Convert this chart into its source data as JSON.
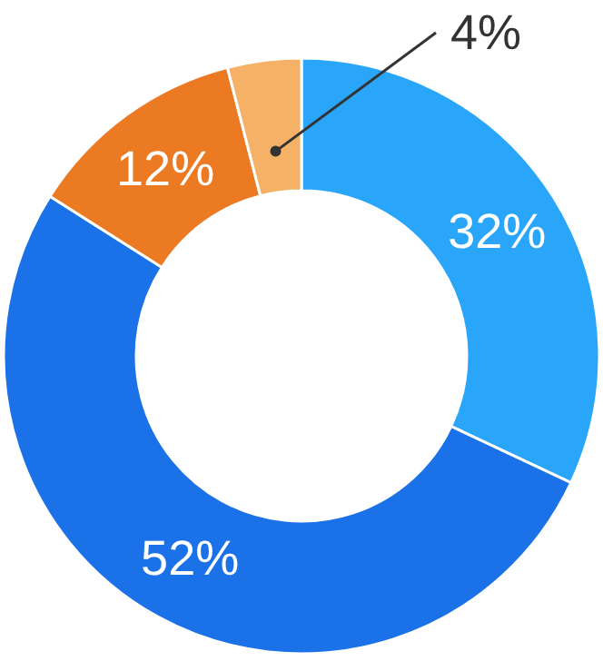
{
  "chart_data": {
    "type": "donut",
    "categories": [
      null,
      null,
      null,
      null
    ],
    "values": [
      32,
      52,
      12,
      4
    ],
    "colors": [
      "#29a6fa",
      "#1b72e8",
      "#ec7a22",
      "#f5b266"
    ],
    "value_labels": [
      "32%",
      "52%",
      "12%",
      "4%"
    ]
  }
}
